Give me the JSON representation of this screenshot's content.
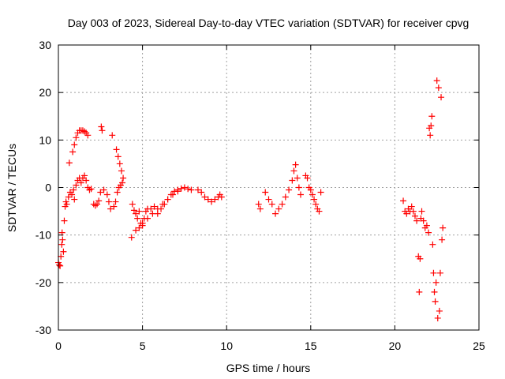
{
  "chart_data": {
    "type": "scatter",
    "title": "Day 003 of 2023, Sidereal Day-to-day VTEC variation (SDTVAR) for receiver cpvg",
    "xlabel": "GPS time / hours",
    "ylabel": "SDTVAR / TECUs",
    "xlim": [
      0,
      25
    ],
    "ylim": [
      -30,
      30
    ],
    "xticks": [
      0,
      5,
      10,
      15,
      20,
      25
    ],
    "yticks": [
      -30,
      -20,
      -10,
      0,
      10,
      20,
      30
    ],
    "xtick_labels": [
      "0",
      "5",
      "10",
      "15",
      "20",
      "25"
    ],
    "ytick_labels": [
      "-30",
      "-20",
      "-10",
      "0",
      "10",
      "20",
      "30"
    ],
    "grid": true,
    "marker": "plus",
    "series": [
      {
        "name": "SDTVAR",
        "color": "#ff0000",
        "points": [
          [
            0.0,
            -15.8
          ],
          [
            0.05,
            -16.3
          ],
          [
            0.1,
            -16.5
          ],
          [
            0.15,
            -14.5
          ],
          [
            0.2,
            -12.0
          ],
          [
            0.22,
            -9.5
          ],
          [
            0.25,
            -11.0
          ],
          [
            0.3,
            -13.5
          ],
          [
            0.35,
            -7.0
          ],
          [
            0.4,
            -4.0
          ],
          [
            0.45,
            -3.0
          ],
          [
            0.5,
            -3.5
          ],
          [
            0.6,
            -2.0
          ],
          [
            0.65,
            5.2
          ],
          [
            0.7,
            -1.0
          ],
          [
            0.8,
            -1.5
          ],
          [
            0.9,
            -0.5
          ],
          [
            0.85,
            7.5
          ],
          [
            0.95,
            9.0
          ],
          [
            1.05,
            10.5
          ],
          [
            1.15,
            11.5
          ],
          [
            1.25,
            12.0
          ],
          [
            1.35,
            12.0
          ],
          [
            1.45,
            12.0
          ],
          [
            1.55,
            11.8
          ],
          [
            1.65,
            11.5
          ],
          [
            1.75,
            11.0
          ],
          [
            0.95,
            -2.5
          ],
          [
            1.05,
            0.5
          ],
          [
            1.15,
            1.5
          ],
          [
            1.25,
            2.0
          ],
          [
            1.35,
            1.0
          ],
          [
            1.45,
            2.0
          ],
          [
            1.55,
            2.5
          ],
          [
            1.65,
            1.5
          ],
          [
            1.75,
            0.0
          ],
          [
            1.85,
            -0.5
          ],
          [
            1.95,
            -0.3
          ],
          [
            2.1,
            -3.5
          ],
          [
            2.2,
            -3.8
          ],
          [
            2.3,
            -3.5
          ],
          [
            2.4,
            -2.8
          ],
          [
            2.5,
            -1.0
          ],
          [
            2.55,
            12.8
          ],
          [
            2.6,
            12.0
          ],
          [
            2.7,
            -0.5
          ],
          [
            2.9,
            -1.5
          ],
          [
            3.0,
            -3.0
          ],
          [
            3.1,
            -4.5
          ],
          [
            3.2,
            11.0
          ],
          [
            3.3,
            -4.0
          ],
          [
            3.4,
            -3.0
          ],
          [
            3.5,
            -1.0
          ],
          [
            3.6,
            0.0
          ],
          [
            3.7,
            0.5
          ],
          [
            3.8,
            1.0
          ],
          [
            3.45,
            8.0
          ],
          [
            3.55,
            6.5
          ],
          [
            3.65,
            5.0
          ],
          [
            3.75,
            3.5
          ],
          [
            3.85,
            2.0
          ],
          [
            4.35,
            -10.5
          ],
          [
            4.4,
            -3.5
          ],
          [
            4.5,
            -4.8
          ],
          [
            4.6,
            -5.5
          ],
          [
            4.7,
            -6.5
          ],
          [
            4.8,
            -5.0
          ],
          [
            4.9,
            -7.5
          ],
          [
            5.0,
            -8.0
          ],
          [
            5.1,
            -6.5
          ],
          [
            5.2,
            -5.0
          ],
          [
            5.3,
            -4.5
          ],
          [
            5.5,
            -4.5
          ],
          [
            5.7,
            -4.0
          ],
          [
            5.9,
            -5.5
          ],
          [
            6.1,
            -4.5
          ],
          [
            6.3,
            -3.5
          ],
          [
            6.5,
            -2.5
          ],
          [
            6.7,
            -1.5
          ],
          [
            6.9,
            -0.8
          ],
          [
            7.1,
            -0.5
          ],
          [
            7.3,
            -0.2
          ],
          [
            7.5,
            0.0
          ],
          [
            7.7,
            -0.3
          ],
          [
            7.9,
            -0.5
          ],
          [
            4.6,
            -9.0
          ],
          [
            4.8,
            -8.5
          ],
          [
            5.0,
            -7.5
          ],
          [
            5.3,
            -6.5
          ],
          [
            5.6,
            -5.5
          ],
          [
            5.9,
            -4.5
          ],
          [
            6.2,
            -3.5
          ],
          [
            6.5,
            -2.5
          ],
          [
            6.8,
            -1.5
          ],
          [
            7.1,
            -0.8
          ],
          [
            8.3,
            -0.5
          ],
          [
            8.5,
            -1.0
          ],
          [
            8.7,
            -2.0
          ],
          [
            8.9,
            -2.5
          ],
          [
            9.1,
            -3.0
          ],
          [
            9.3,
            -2.5
          ],
          [
            9.5,
            -2.0
          ],
          [
            9.6,
            -1.5
          ],
          [
            9.7,
            -2.0
          ],
          [
            11.9,
            -3.5
          ],
          [
            12.0,
            -4.5
          ],
          [
            12.3,
            -1.0
          ],
          [
            12.5,
            -2.5
          ],
          [
            12.7,
            -3.5
          ],
          [
            12.9,
            -5.5
          ],
          [
            13.1,
            -4.5
          ],
          [
            13.3,
            -3.5
          ],
          [
            13.5,
            -2.0
          ],
          [
            13.7,
            -0.5
          ],
          [
            13.9,
            1.5
          ],
          [
            14.0,
            3.5
          ],
          [
            14.1,
            4.8
          ],
          [
            14.2,
            2.0
          ],
          [
            14.3,
            0.0
          ],
          [
            14.4,
            -1.5
          ],
          [
            14.7,
            2.5
          ],
          [
            14.8,
            2.0
          ],
          [
            14.9,
            0.0
          ],
          [
            15.0,
            -0.5
          ],
          [
            15.1,
            -1.5
          ],
          [
            15.2,
            -2.5
          ],
          [
            15.3,
            -3.5
          ],
          [
            15.4,
            -4.5
          ],
          [
            15.5,
            -5.0
          ],
          [
            15.6,
            -1.0
          ],
          [
            20.5,
            -2.8
          ],
          [
            20.6,
            -5.0
          ],
          [
            20.7,
            -5.5
          ],
          [
            20.8,
            -4.5
          ],
          [
            20.9,
            -5.0
          ],
          [
            21.0,
            -4.0
          ],
          [
            21.1,
            -5.0
          ],
          [
            21.2,
            -6.0
          ],
          [
            21.3,
            -7.0
          ],
          [
            21.4,
            -14.5
          ],
          [
            21.45,
            -22.0
          ],
          [
            21.5,
            -15.0
          ],
          [
            21.55,
            -6.5
          ],
          [
            21.6,
            -5.0
          ],
          [
            21.7,
            -7.0
          ],
          [
            21.8,
            -8.5
          ],
          [
            21.9,
            -8.0
          ],
          [
            22.0,
            -9.5
          ],
          [
            22.05,
            12.5
          ],
          [
            22.1,
            11.0
          ],
          [
            22.15,
            13.0
          ],
          [
            22.2,
            15.0
          ],
          [
            22.25,
            -12.0
          ],
          [
            22.3,
            -18.0
          ],
          [
            22.35,
            -22.0
          ],
          [
            22.4,
            -24.0
          ],
          [
            22.45,
            -20.0
          ],
          [
            22.5,
            22.5
          ],
          [
            22.55,
            -27.5
          ],
          [
            22.6,
            21.0
          ],
          [
            22.65,
            -26.0
          ],
          [
            22.7,
            -18.0
          ],
          [
            22.75,
            19.0
          ],
          [
            22.8,
            -11.0
          ],
          [
            22.85,
            -8.5
          ]
        ]
      }
    ]
  }
}
